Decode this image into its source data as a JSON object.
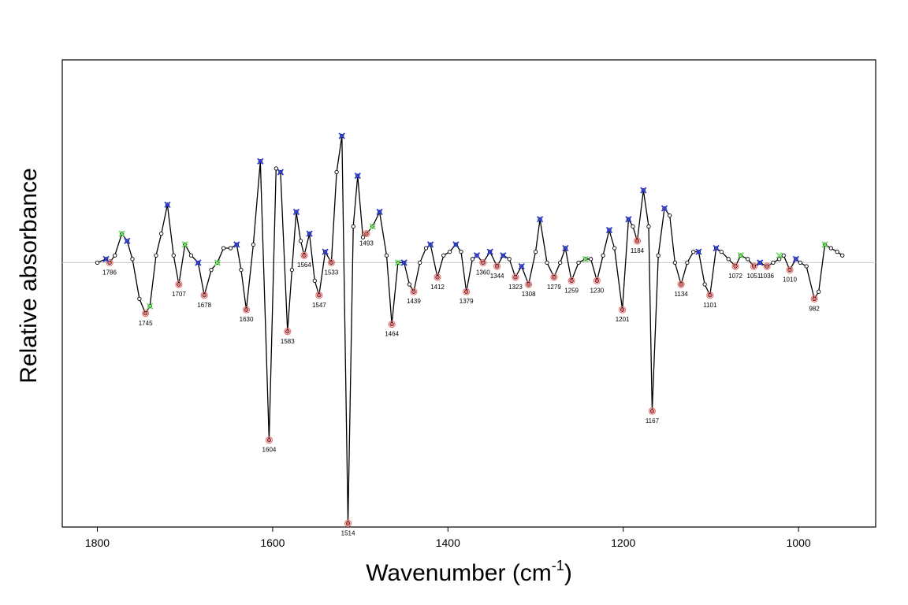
{
  "chart_data": {
    "type": "line",
    "xlabel": "Wavenumber (cm",
    "xlabel_sup": "-1",
    "xlabel_close": ")",
    "ylabel": "Relative absorbance",
    "xlim": [
      1840,
      912
    ],
    "ylim": [
      -0.73,
      0.56
    ],
    "x_reversed": true,
    "grid": false,
    "baseline": 0,
    "x_ticks": [
      1800,
      1600,
      1400,
      1200,
      1000
    ],
    "series": [
      {
        "x": [
          1800,
          1790,
          1786,
          1780,
          1772,
          1766,
          1760,
          1752,
          1745,
          1740,
          1733,
          1727,
          1720,
          1713,
          1707,
          1700,
          1693,
          1685,
          1678,
          1670,
          1663,
          1656,
          1648,
          1641,
          1636,
          1630,
          1622,
          1614,
          1604,
          1596,
          1591,
          1583,
          1578,
          1573,
          1568,
          1564,
          1558,
          1552,
          1547,
          1540,
          1533,
          1527,
          1521,
          1514,
          1508,
          1503,
          1497,
          1493,
          1486,
          1478,
          1470,
          1464,
          1457,
          1450,
          1444,
          1439,
          1432,
          1425,
          1420,
          1412,
          1405,
          1398,
          1391,
          1385,
          1379,
          1372,
          1367,
          1360,
          1352,
          1344,
          1337,
          1330,
          1323,
          1316,
          1308,
          1300,
          1295,
          1287,
          1279,
          1272,
          1266,
          1259,
          1251,
          1243,
          1237,
          1230,
          1223,
          1216,
          1210,
          1201,
          1194,
          1189,
          1184,
          1177,
          1171,
          1167,
          1160,
          1153,
          1147,
          1141,
          1134,
          1127,
          1120,
          1114,
          1107,
          1101,
          1094,
          1088,
          1080,
          1072,
          1066,
          1058,
          1051,
          1044,
          1036,
          1029,
          1022,
          1017,
          1010,
          1003,
          998,
          991,
          982,
          977,
          970,
          963,
          956,
          950
        ],
        "y": [
          0,
          0.01,
          0,
          0.02,
          0.08,
          0.06,
          0.01,
          -0.1,
          -0.14,
          -0.12,
          0.02,
          0.08,
          0.16,
          0.02,
          -0.06,
          0.05,
          0.02,
          0,
          -0.09,
          -0.02,
          0,
          0.04,
          0.04,
          0.05,
          -0.02,
          -0.13,
          0.05,
          0.28,
          -0.49,
          0.26,
          0.25,
          -0.19,
          -0.02,
          0.14,
          0.06,
          0.02,
          0.08,
          -0.05,
          -0.09,
          0.03,
          0,
          0.25,
          0.35,
          -0.72,
          0.1,
          0.24,
          0.07,
          0.08,
          0.1,
          0.14,
          0.02,
          -0.17,
          0,
          0,
          -0.06,
          -0.08,
          0,
          0.04,
          0.05,
          -0.04,
          0.02,
          0.03,
          0.05,
          0.03,
          -0.08,
          0.01,
          0.02,
          0,
          0.03,
          -0.01,
          0.02,
          0.01,
          -0.04,
          -0.01,
          -0.06,
          0.03,
          0.12,
          0,
          -0.04,
          0,
          0.04,
          -0.05,
          0,
          0.01,
          0.01,
          -0.05,
          0.02,
          0.09,
          0.04,
          -0.13,
          0.12,
          0.1,
          0.06,
          0.2,
          0.1,
          -0.41,
          0.02,
          0.15,
          0.13,
          0,
          -0.06,
          0,
          0.03,
          0.03,
          -0.06,
          -0.09,
          0.04,
          0.03,
          0.01,
          -0.01,
          0.02,
          0.01,
          -0.01,
          0,
          -0.01,
          0,
          0.01,
          0.02,
          -0.02,
          0.01,
          0,
          -0.01,
          -0.1,
          -0.08,
          0.05,
          0.04,
          0.03,
          0.02
        ]
      }
    ],
    "peak_labels": [
      {
        "x": 1786,
        "y": 0,
        "text": "1786",
        "color": "#f07070"
      },
      {
        "x": 1745,
        "y": -0.14,
        "text": "1745",
        "color": "#f07070"
      },
      {
        "x": 1707,
        "y": -0.06,
        "text": "1707",
        "color": "#f07070"
      },
      {
        "x": 1678,
        "y": -0.09,
        "text": "1678",
        "color": "#f07070"
      },
      {
        "x": 1630,
        "y": -0.13,
        "text": "1630",
        "color": "#f07070"
      },
      {
        "x": 1604,
        "y": -0.49,
        "text": "1604",
        "color": "#f07070"
      },
      {
        "x": 1583,
        "y": -0.19,
        "text": "1583",
        "color": "#f07070"
      },
      {
        "x": 1564,
        "y": 0.02,
        "text": "1564",
        "color": "#f07070"
      },
      {
        "x": 1547,
        "y": -0.09,
        "text": "1547",
        "color": "#f07070"
      },
      {
        "x": 1533,
        "y": 0,
        "text": "1533",
        "color": "#f07070"
      },
      {
        "x": 1514,
        "y": -0.72,
        "text": "1514",
        "color": "#f07070"
      },
      {
        "x": 1493,
        "y": 0.08,
        "text": "1493",
        "color": "#f07070"
      },
      {
        "x": 1464,
        "y": -0.17,
        "text": "1464",
        "color": "#f07070"
      },
      {
        "x": 1439,
        "y": -0.08,
        "text": "1439",
        "color": "#f07070"
      },
      {
        "x": 1412,
        "y": -0.04,
        "text": "1412",
        "color": "#f07070"
      },
      {
        "x": 1379,
        "y": -0.08,
        "text": "1379",
        "color": "#f07070"
      },
      {
        "x": 1360,
        "y": 0,
        "text": "1360",
        "color": "#f07070"
      },
      {
        "x": 1344,
        "y": -0.01,
        "text": "1344",
        "color": "#f07070"
      },
      {
        "x": 1323,
        "y": -0.04,
        "text": "1323",
        "color": "#f07070"
      },
      {
        "x": 1308,
        "y": -0.06,
        "text": "1308",
        "color": "#f07070"
      },
      {
        "x": 1279,
        "y": -0.04,
        "text": "1279",
        "color": "#f07070"
      },
      {
        "x": 1259,
        "y": -0.05,
        "text": "1259",
        "color": "#f07070"
      },
      {
        "x": 1230,
        "y": -0.05,
        "text": "1230",
        "color": "#f07070"
      },
      {
        "x": 1201,
        "y": -0.13,
        "text": "1201",
        "color": "#f07070"
      },
      {
        "x": 1184,
        "y": 0.06,
        "text": "1184",
        "color": "#f07070"
      },
      {
        "x": 1167,
        "y": -0.41,
        "text": "1167",
        "color": "#f07070"
      },
      {
        "x": 1134,
        "y": -0.06,
        "text": "1134",
        "color": "#f07070"
      },
      {
        "x": 1101,
        "y": -0.09,
        "text": "1101",
        "color": "#f07070"
      },
      {
        "x": 1072,
        "y": -0.01,
        "text": "1072",
        "color": "#f07070"
      },
      {
        "x": 1051,
        "y": -0.01,
        "text": "1051",
        "color": "#f07070"
      },
      {
        "x": 1036,
        "y": -0.01,
        "text": "1036",
        "color": "#f07070"
      },
      {
        "x": 1010,
        "y": -0.02,
        "text": "1010",
        "color": "#f07070"
      },
      {
        "x": 982,
        "y": -0.1,
        "text": "982",
        "color": "#f07070"
      }
    ],
    "maxima_markers": [
      {
        "x": 1790,
        "y": 0.01,
        "color": "#2b3bd6"
      },
      {
        "x": 1772,
        "y": 0.08,
        "color": "#6ee060"
      },
      {
        "x": 1766,
        "y": 0.06,
        "color": "#2b3bd6"
      },
      {
        "x": 1740,
        "y": -0.12,
        "color": "#6ee060"
      },
      {
        "x": 1720,
        "y": 0.16,
        "color": "#2b3bd6"
      },
      {
        "x": 1700,
        "y": 0.05,
        "color": "#6ee060"
      },
      {
        "x": 1685,
        "y": 0,
        "color": "#2b3bd6"
      },
      {
        "x": 1663,
        "y": 0,
        "color": "#6ee060"
      },
      {
        "x": 1641,
        "y": 0.05,
        "color": "#2b3bd6"
      },
      {
        "x": 1614,
        "y": 0.28,
        "color": "#2b3bd6"
      },
      {
        "x": 1591,
        "y": 0.25,
        "color": "#2b3bd6"
      },
      {
        "x": 1573,
        "y": 0.14,
        "color": "#2b3bd6"
      },
      {
        "x": 1558,
        "y": 0.08,
        "color": "#2b3bd6"
      },
      {
        "x": 1540,
        "y": 0.03,
        "color": "#2b3bd6"
      },
      {
        "x": 1521,
        "y": 0.35,
        "color": "#2b3bd6"
      },
      {
        "x": 1503,
        "y": 0.24,
        "color": "#2b3bd6"
      },
      {
        "x": 1486,
        "y": 0.1,
        "color": "#6ee060"
      },
      {
        "x": 1478,
        "y": 0.14,
        "color": "#2b3bd6"
      },
      {
        "x": 1457,
        "y": 0,
        "color": "#6ee060"
      },
      {
        "x": 1450,
        "y": 0,
        "color": "#2b3bd6"
      },
      {
        "x": 1420,
        "y": 0.05,
        "color": "#2b3bd6"
      },
      {
        "x": 1391,
        "y": 0.05,
        "color": "#2b3bd6"
      },
      {
        "x": 1367,
        "y": 0.02,
        "color": "#2b3bd6"
      },
      {
        "x": 1352,
        "y": 0.03,
        "color": "#2b3bd6"
      },
      {
        "x": 1337,
        "y": 0.02,
        "color": "#2b3bd6"
      },
      {
        "x": 1316,
        "y": -0.01,
        "color": "#2b3bd6"
      },
      {
        "x": 1295,
        "y": 0.12,
        "color": "#2b3bd6"
      },
      {
        "x": 1266,
        "y": 0.04,
        "color": "#2b3bd6"
      },
      {
        "x": 1243,
        "y": 0.01,
        "color": "#6ee060"
      },
      {
        "x": 1216,
        "y": 0.09,
        "color": "#2b3bd6"
      },
      {
        "x": 1194,
        "y": 0.12,
        "color": "#2b3bd6"
      },
      {
        "x": 1177,
        "y": 0.2,
        "color": "#2b3bd6"
      },
      {
        "x": 1153,
        "y": 0.15,
        "color": "#2b3bd6"
      },
      {
        "x": 1114,
        "y": 0.03,
        "color": "#2b3bd6"
      },
      {
        "x": 1094,
        "y": 0.04,
        "color": "#2b3bd6"
      },
      {
        "x": 1066,
        "y": 0.02,
        "color": "#6ee060"
      },
      {
        "x": 1044,
        "y": 0,
        "color": "#2b3bd6"
      },
      {
        "x": 1022,
        "y": 0.02,
        "color": "#6ee060"
      },
      {
        "x": 1003,
        "y": 0.01,
        "color": "#2b3bd6"
      },
      {
        "x": 970,
        "y": 0.05,
        "color": "#6ee060"
      }
    ],
    "colors": {
      "line": "#000000",
      "baseline": "#c8c8c8",
      "minima": "#f07070",
      "maxima_a": "#2b3bd6",
      "maxima_b": "#6ee060"
    }
  }
}
